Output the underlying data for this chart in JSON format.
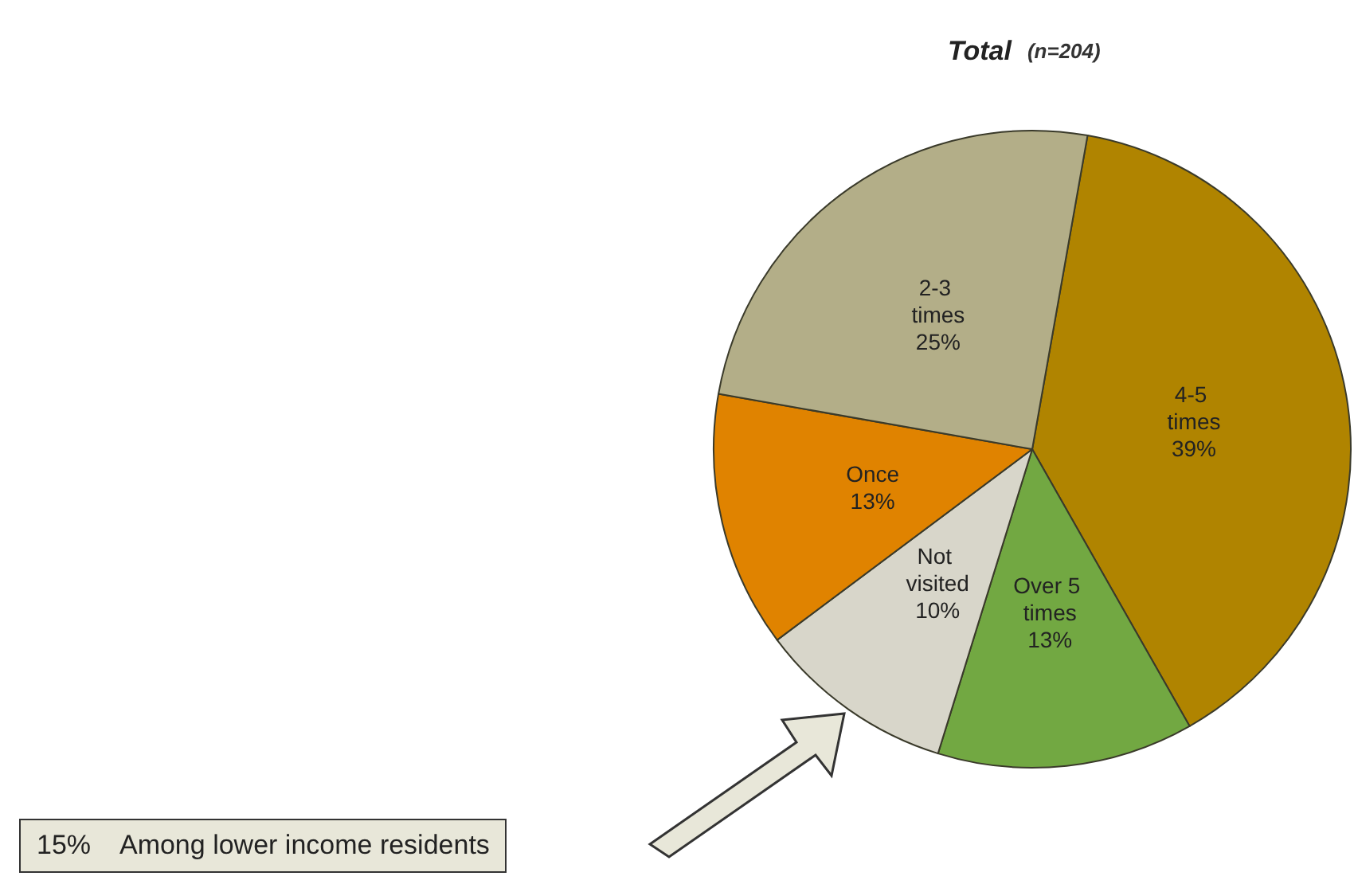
{
  "chart_data": {
    "type": "pie",
    "title": "Total",
    "subtitle": "(n=204)",
    "categories": [
      "4-5 times",
      "Over 5 times",
      "Not visited",
      "Once",
      "2-3 times"
    ],
    "values": [
      39,
      13,
      10,
      13,
      25
    ],
    "colors": [
      "#b08400",
      "#72a842",
      "#d8d6ca",
      "#e08300",
      "#b3ae88"
    ],
    "value_labels": [
      "39%",
      "13%",
      "10%",
      "13%",
      "25%"
    ],
    "annotations": [
      "15%    Among lower income residents"
    ]
  }
}
